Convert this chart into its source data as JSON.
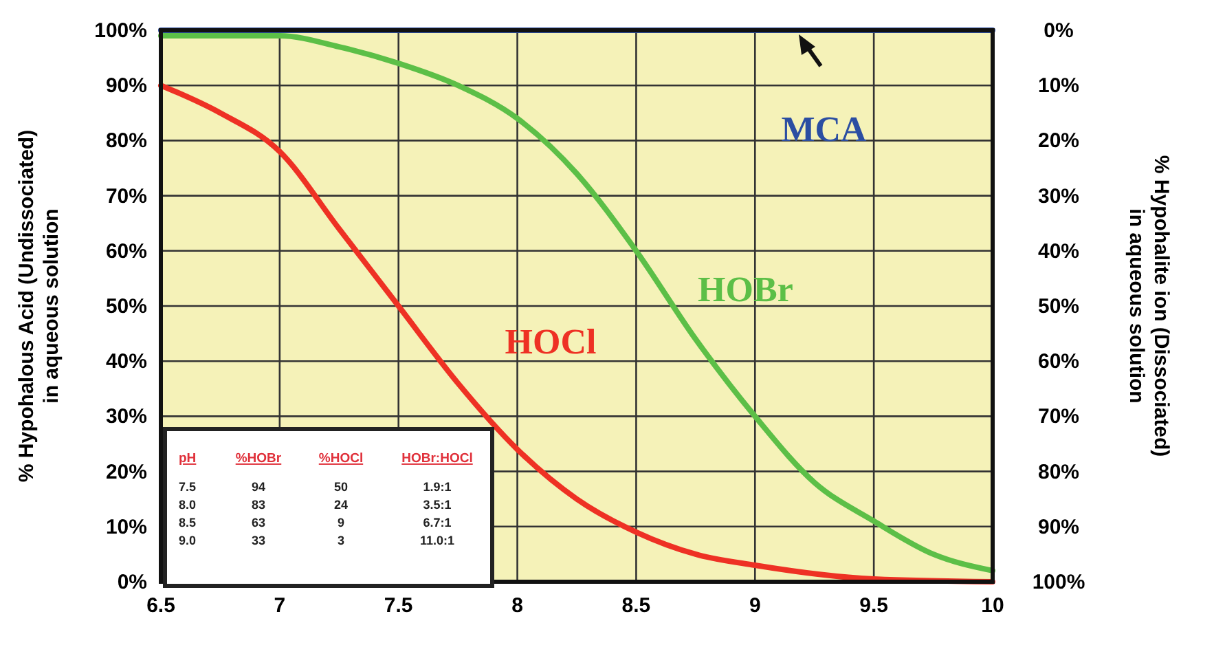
{
  "chart_data": {
    "type": "line",
    "ylabel": "% Hypohalous Acid (Undissociated) in aqueous solution",
    "y2label": "% Hypohalite ion (Dissociated) in aqueous solution",
    "xlim": [
      6.5,
      10
    ],
    "xticks": [
      6.5,
      7,
      7.5,
      8,
      8.5,
      9,
      9.5,
      10
    ],
    "ylim": [
      0,
      100
    ],
    "yticks": [
      {
        "value": 0,
        "label": "0%"
      },
      {
        "value": 10,
        "label": "10%"
      },
      {
        "value": 20,
        "label": "20%"
      },
      {
        "value": 30,
        "label": "30%"
      },
      {
        "value": 40,
        "label": "40%"
      },
      {
        "value": 50,
        "label": "50%"
      },
      {
        "value": 60,
        "label": "60%"
      },
      {
        "value": 70,
        "label": "70%"
      },
      {
        "value": 80,
        "label": "80%"
      },
      {
        "value": 90,
        "label": "90%"
      },
      {
        "value": 100,
        "label": "100%"
      }
    ],
    "y2lim": [
      100,
      0
    ],
    "y2ticks": [
      {
        "value": 0,
        "label": "0%"
      },
      {
        "value": 10,
        "label": "10%"
      },
      {
        "value": 20,
        "label": "20%"
      },
      {
        "value": 30,
        "label": "30%"
      },
      {
        "value": 40,
        "label": "40%"
      },
      {
        "value": 50,
        "label": "50%"
      },
      {
        "value": 60,
        "label": "60%"
      },
      {
        "value": 70,
        "label": "70%"
      },
      {
        "value": 80,
        "label": "80%"
      },
      {
        "value": 90,
        "label": "90%"
      },
      {
        "value": 100,
        "label": "100%"
      }
    ],
    "grid": true,
    "marker": "none",
    "line_style": "solid",
    "series": [
      {
        "name": "MCA",
        "color": "#2b4ea2",
        "x": [
          6.5,
          10
        ],
        "values": [
          100,
          100
        ]
      },
      {
        "name": "HOBr",
        "color": "#5cbf47",
        "x": [
          6.5,
          7,
          7.25,
          7.5,
          7.75,
          8,
          8.25,
          8.5,
          8.75,
          9,
          9.25,
          9.5,
          9.75,
          10
        ],
        "values": [
          99,
          99,
          97,
          94,
          90,
          84,
          74,
          60,
          44,
          30,
          18,
          11,
          5,
          2
        ]
      },
      {
        "name": "HOCl",
        "color": "#ee3124",
        "x": [
          6.5,
          6.75,
          7,
          7.25,
          7.5,
          7.75,
          8,
          8.25,
          8.5,
          8.75,
          9,
          9.5,
          10
        ],
        "values": [
          90,
          85,
          78,
          64,
          50,
          36,
          24,
          15,
          9,
          5,
          3,
          0.5,
          0
        ]
      }
    ],
    "annotations": [
      "pH",
      "%HOBr",
      "%HOCl",
      "HOBr:HOCl",
      "7.5",
      "94",
      "50",
      "1.9:1",
      "8.0",
      "83",
      "24",
      "3.5:1",
      "8.5",
      "63",
      "9",
      "6.7:1",
      "9.0",
      "33",
      "3",
      "11.0:1"
    ]
  }
}
